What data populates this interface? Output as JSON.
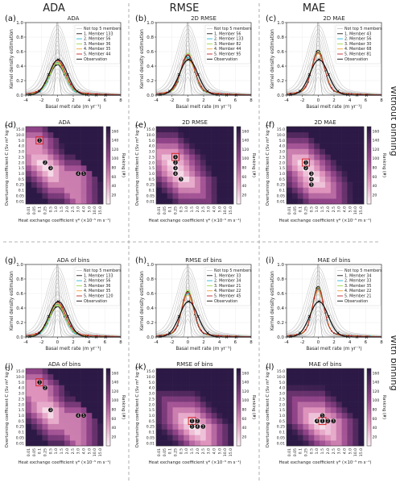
{
  "columns": [
    "ADA",
    "RMSE",
    "MAE"
  ],
  "row_labels": [
    "Without binning",
    "With binning"
  ],
  "common": {
    "kde_ylabel": "Kernel density estimation",
    "kde_xlabel": "Basal melt rate (m yr⁻¹)",
    "kde_xticks": [
      -4,
      -2,
      0,
      2,
      4,
      6,
      8
    ],
    "kde_yticks": [
      0.0,
      0.2,
      0.4,
      0.6,
      0.8,
      1.0
    ],
    "kde_xlim": [
      -4,
      8
    ],
    "kde_ylim": [
      0,
      1.0
    ],
    "heat_ylabel": "Overturning coefficient C (Sv m³ kg⁻¹)",
    "heat_xlabel": "Heat exchange coefficient γ* (×10⁻⁵ m s⁻¹)",
    "heat_ticks": [
      "0.01",
      "0.05",
      "0.1",
      "0.25",
      "0.5",
      "1.0",
      "1.5",
      "2.0",
      "2.5",
      "3.0",
      "4.0",
      "5.0",
      "10.0",
      "15.0"
    ],
    "colorbar_label": "Ranking (#)",
    "colorbar_ticks": [
      20,
      40,
      60,
      80,
      100,
      120,
      140,
      160
    ],
    "not_top5_label": "Not top 5 members",
    "observation_label": "Observation",
    "colors": {
      "m1": "#1a1a1a",
      "m2": "#2ab7d8",
      "m3": "#9bd34a",
      "m4": "#f2a33a",
      "m5": "#c1272d",
      "obs": "#111111",
      "grey": "#c8c8c8"
    }
  },
  "chart_data": [
    {
      "type": "line",
      "panel": "(a)",
      "title": "ADA",
      "members": [
        "1. Member 133",
        "2. Member 56",
        "3. Member 36",
        "4. Member 35",
        "5. Member 44"
      ],
      "peaks": [
        0.42,
        0.45,
        0.44,
        0.46,
        0.48
      ],
      "widths": [
        0.95,
        0.9,
        0.95,
        1.0,
        1.0
      ],
      "obs_peak": 0.49
    },
    {
      "type": "line",
      "panel": "(b)",
      "title": "2D RMSE",
      "members": [
        "1. Member 56",
        "2. Member 133",
        "3. Member 82",
        "4. Member 44",
        "5. Member 95"
      ],
      "peaks": [
        0.55,
        0.52,
        0.58,
        0.5,
        0.56
      ],
      "widths": [
        0.8,
        0.85,
        0.8,
        0.9,
        0.85
      ],
      "obs_peak": 0.49
    },
    {
      "type": "line",
      "panel": "(c)",
      "title": "2D MAE",
      "members": [
        "1. Member 43",
        "2. Member 56",
        "3. Member 30",
        "4. Member 68",
        "5. Member 81"
      ],
      "peaks": [
        0.62,
        0.58,
        0.6,
        0.57,
        0.59
      ],
      "widths": [
        0.75,
        0.8,
        0.78,
        0.8,
        0.78
      ],
      "obs_peak": 0.49
    },
    {
      "type": "heatmap",
      "panel": "(d)",
      "title": "ADA",
      "highlights": [
        [
          2,
          11
        ],
        [
          3,
          7
        ],
        [
          4,
          6
        ],
        [
          9,
          5
        ],
        [
          10,
          5
        ]
      ]
    },
    {
      "type": "heatmap",
      "panel": "(e)",
      "title": "2D RMSE",
      "highlights": [
        [
          3,
          8
        ],
        [
          3,
          7
        ],
        [
          3,
          6
        ],
        [
          3,
          5
        ],
        [
          4,
          4
        ]
      ]
    },
    {
      "type": "heatmap",
      "panel": "(f)",
      "title": "2D MAE",
      "highlights": [
        [
          3,
          7
        ],
        [
          3,
          6
        ],
        [
          4,
          5
        ],
        [
          4,
          4
        ],
        [
          4,
          3
        ]
      ]
    },
    {
      "type": "line",
      "panel": "(g)",
      "title": "ADA of bins",
      "members": [
        "1. Member 133",
        "2. Member 56",
        "3. Member 36",
        "4. Member 35",
        "5. Member 120"
      ],
      "peaks": [
        0.42,
        0.45,
        0.44,
        0.46,
        0.48
      ],
      "widths": [
        0.95,
        0.9,
        0.95,
        1.0,
        1.0
      ],
      "obs_peak": 0.49
    },
    {
      "type": "line",
      "panel": "(h)",
      "title": "RMSE of bins",
      "members": [
        "1. Member 33",
        "2. Member 34",
        "3. Member 21",
        "4. Member 22",
        "5. Member 45"
      ],
      "peaks": [
        0.63,
        0.6,
        0.65,
        0.58,
        0.62
      ],
      "widths": [
        0.7,
        0.75,
        0.72,
        0.76,
        0.74
      ],
      "obs_peak": 0.49
    },
    {
      "type": "line",
      "panel": "(i)",
      "title": "MAE of bins",
      "members": [
        "1. Member 34",
        "2. Member 33",
        "3. Member 35",
        "4. Member 22",
        "5. Member 21"
      ],
      "peaks": [
        0.7,
        0.66,
        0.68,
        0.64,
        0.67
      ],
      "widths": [
        0.68,
        0.7,
        0.7,
        0.72,
        0.7
      ],
      "obs_peak": 0.49
    },
    {
      "type": "heatmap",
      "panel": "(j)",
      "title": "ADA of bins",
      "highlights": [
        [
          2,
          11
        ],
        [
          3,
          10
        ],
        [
          4,
          6
        ],
        [
          9,
          5
        ],
        [
          10,
          5
        ]
      ]
    },
    {
      "type": "heatmap",
      "panel": "(k)",
      "title": "RMSE of bins",
      "highlights": [
        [
          6,
          4
        ],
        [
          7,
          4
        ],
        [
          8,
          3
        ],
        [
          7,
          3
        ],
        [
          6,
          3
        ]
      ]
    },
    {
      "type": "heatmap",
      "panel": "(l)",
      "title": "MAE of bins",
      "highlights": [
        [
          6,
          4
        ],
        [
          7,
          4
        ],
        [
          8,
          4
        ],
        [
          5,
          4
        ],
        [
          6,
          5
        ]
      ]
    }
  ]
}
